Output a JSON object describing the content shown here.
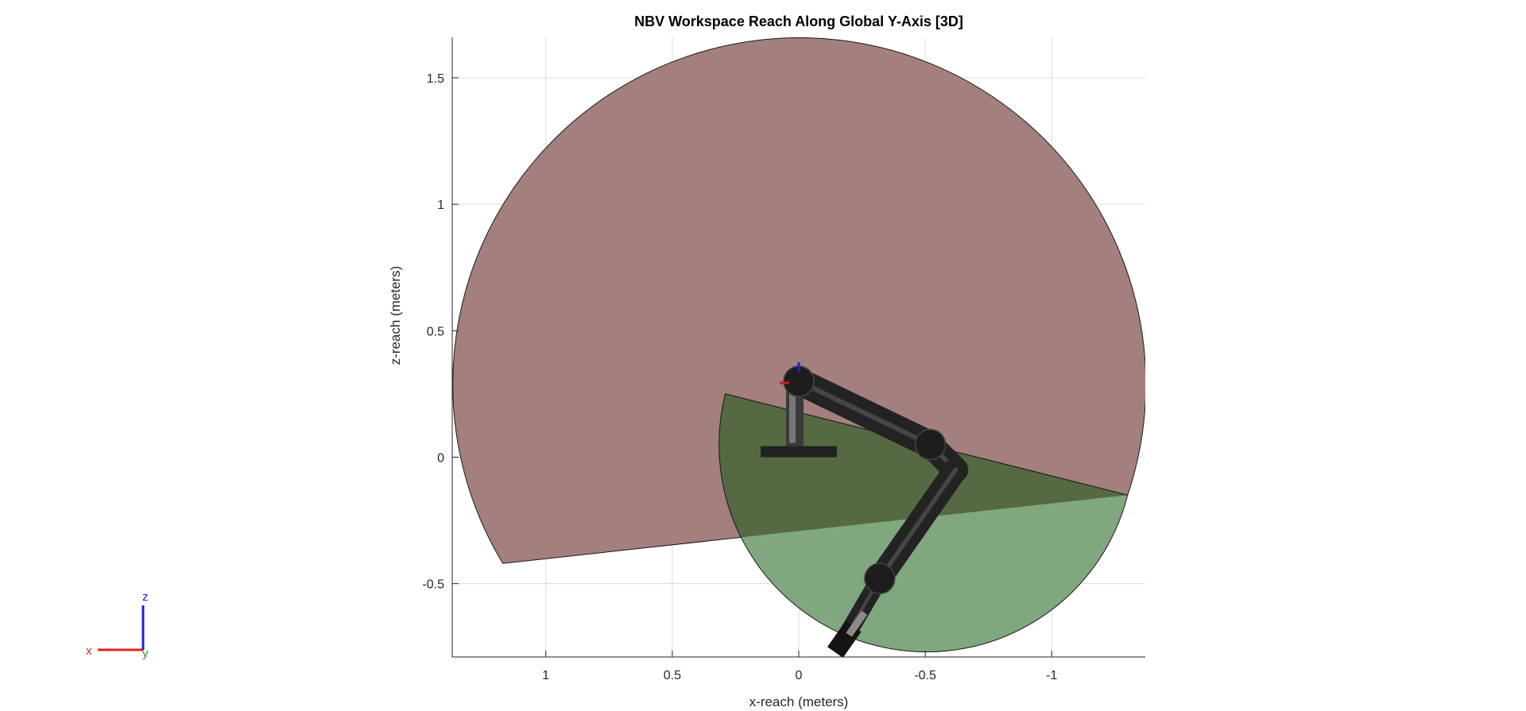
{
  "chart_data": {
    "type": "area",
    "title": "NBV Workspace Reach Along Global Y-Axis [3D]",
    "xlabel": "x-reach (meters)",
    "ylabel": "z-reach (meters)",
    "x_reversed": true,
    "xlim": [
      1.37,
      -1.37
    ],
    "ylim": [
      -0.79,
      1.66
    ],
    "xticks": [
      1,
      0.5,
      0,
      -0.5,
      -1
    ],
    "xtick_labels": [
      "1",
      "0.5",
      "0",
      "-0.5",
      "-1"
    ],
    "yticks": [
      1.5,
      1,
      0.5,
      0,
      -0.5
    ],
    "ytick_labels": [
      "1.5",
      "1",
      "0.5",
      "0",
      "-0.5"
    ],
    "grid": true,
    "series": [
      {
        "kind": "sector",
        "center": [
          0,
          0.29
        ],
        "radius": 1.37,
        "vertices": [
          [
            1.17,
            -0.42
          ],
          [
            -1.3,
            -0.15
          ]
        ],
        "color": "#a37f7d"
      },
      {
        "kind": "sector",
        "center": [
          -0.52,
          0.0
        ],
        "radius": 0.77,
        "vertices": [
          [
            0.29,
            0.25
          ],
          [
            -1.3,
            -0.15
          ]
        ],
        "color": "#80a77e"
      }
    ],
    "overlap_color": "#556a42",
    "robot_arm": [
      [
        0,
        0.3
      ],
      [
        -0.52,
        0.05
      ],
      [
        -0.62,
        -0.05
      ],
      [
        -0.32,
        -0.48
      ],
      [
        -0.18,
        -0.72
      ]
    ],
    "orientation_axes": {
      "x_label": "x",
      "y_label": "y",
      "z_label": "z",
      "x_color": "#e0201b",
      "y_color": "#1e9a1e",
      "z_color": "#1f1fd6"
    }
  }
}
